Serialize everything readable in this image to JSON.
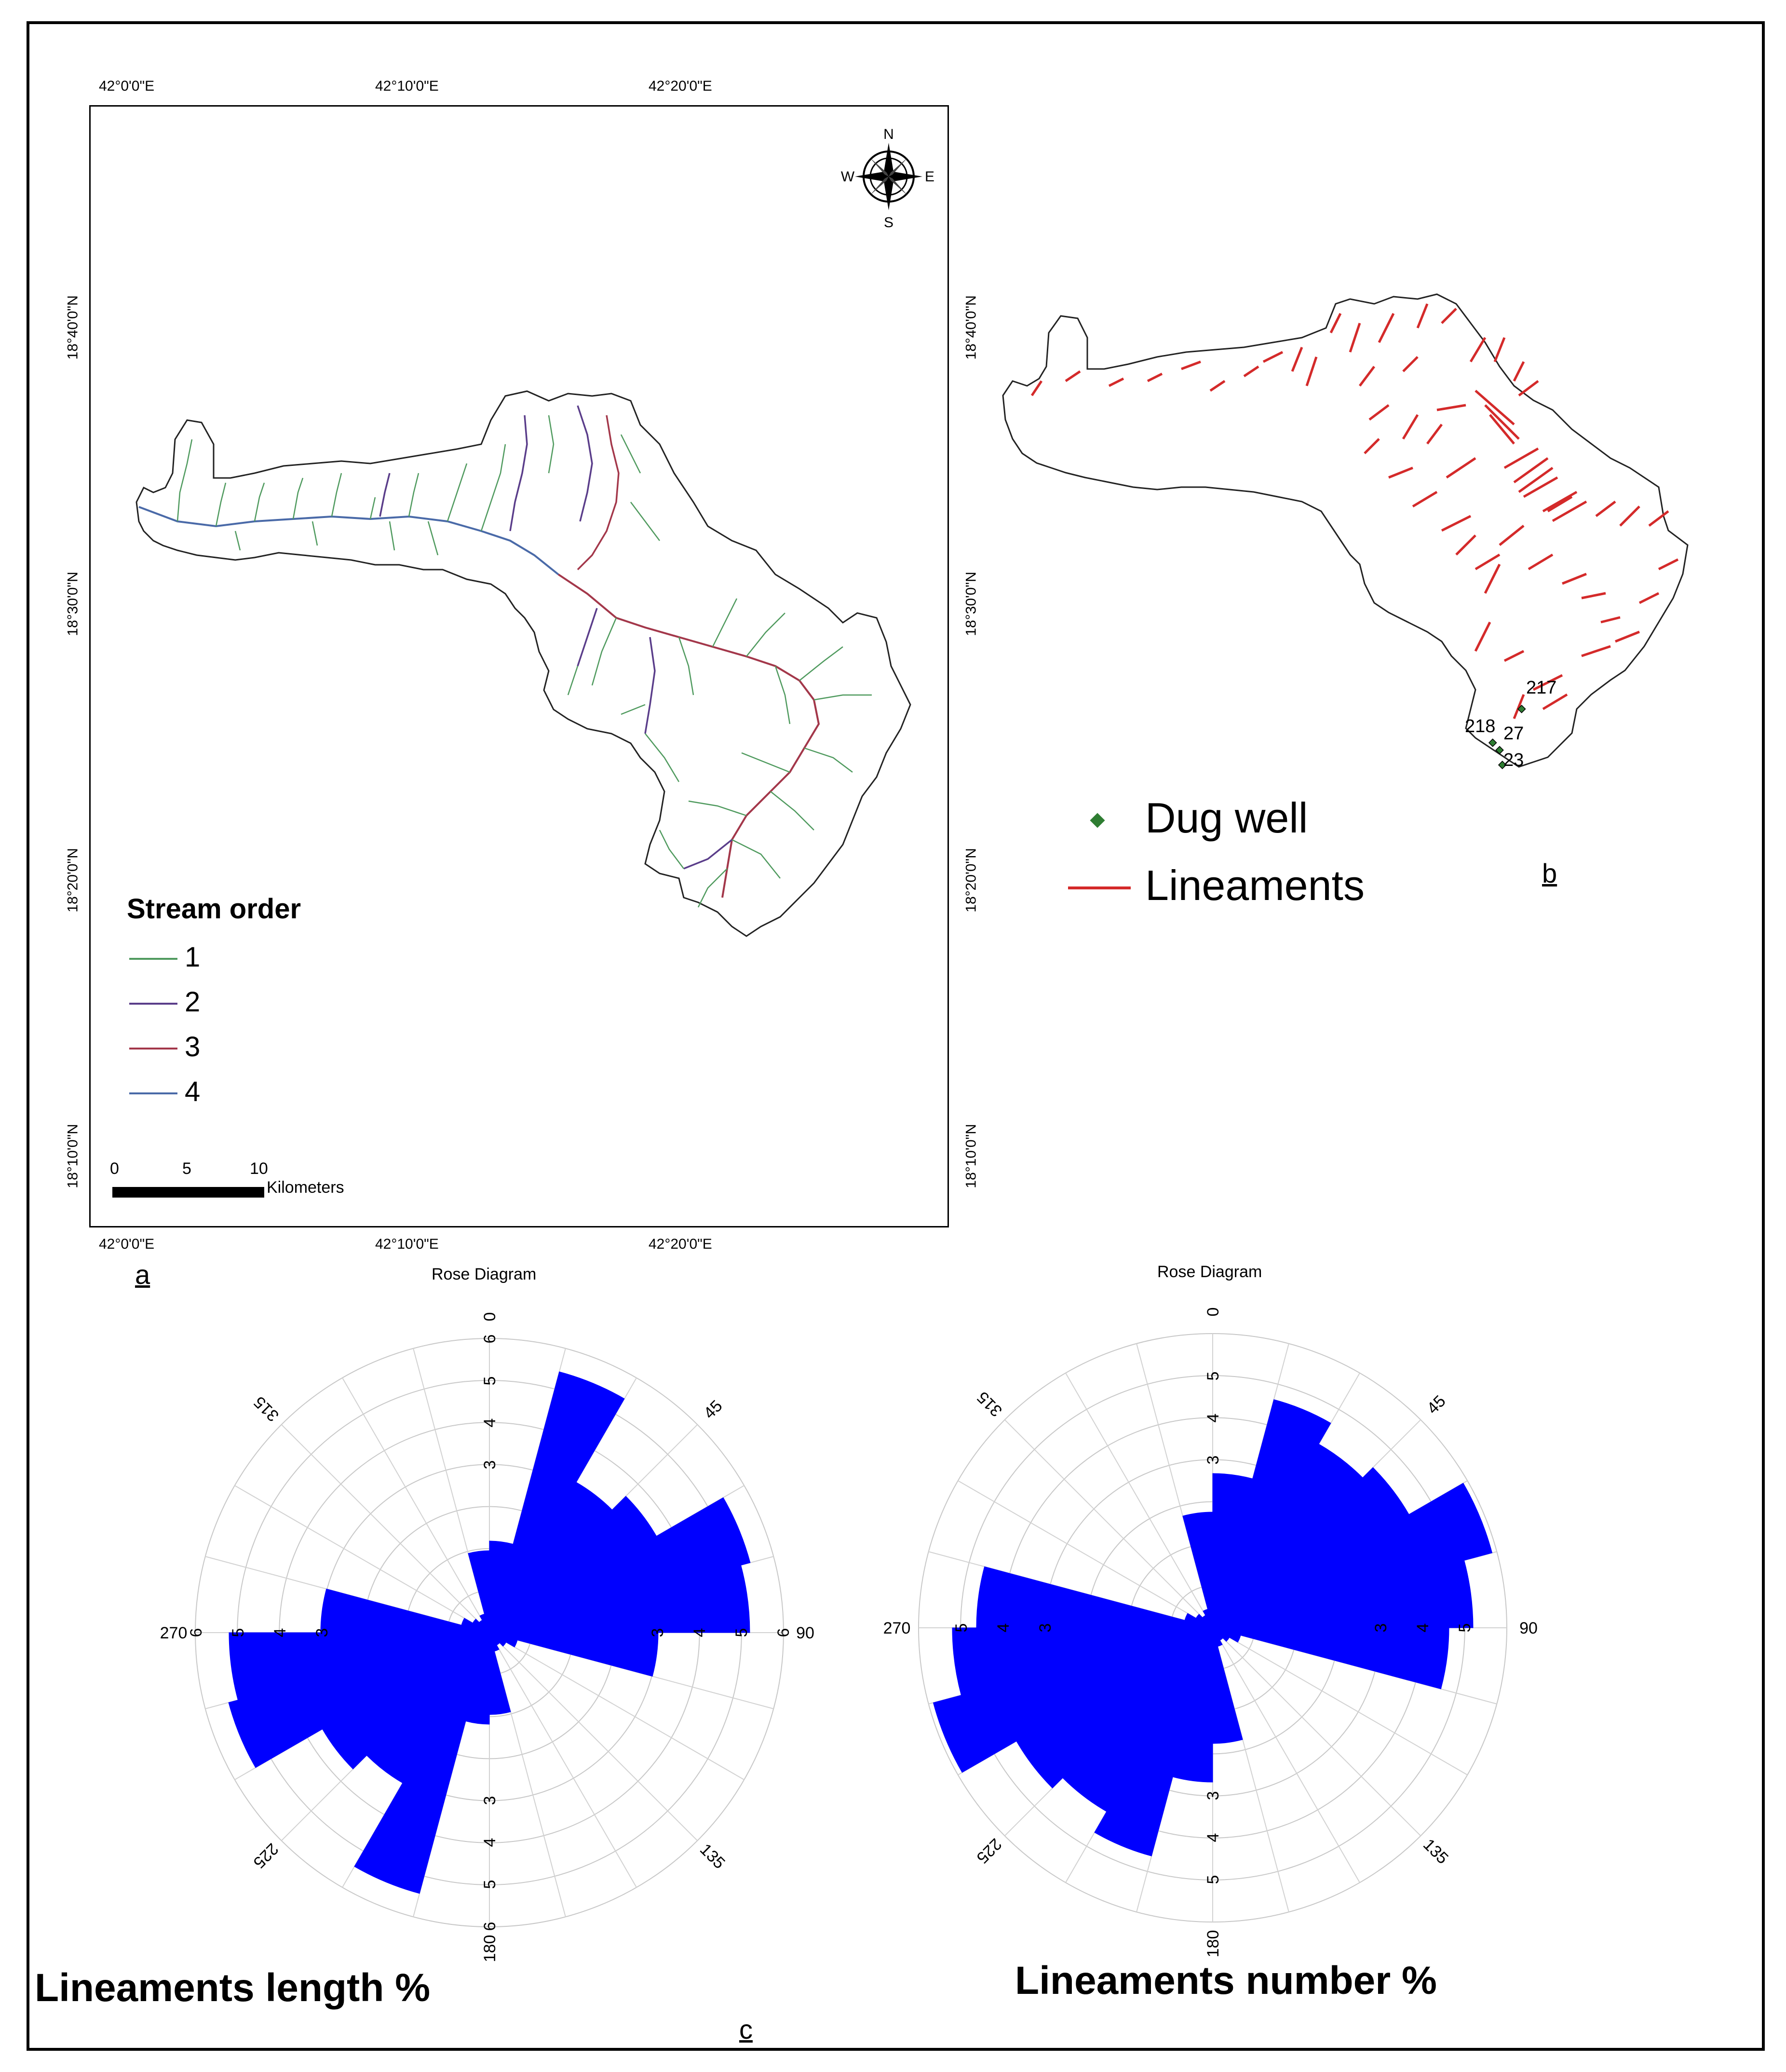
{
  "map_a": {
    "coords_top": [
      "42°0'0\"E",
      "42°10'0\"E",
      "42°20'0\"E"
    ],
    "coords_bottom": [
      "42°0'0\"E",
      "42°10'0\"E",
      "42°20'0\"E"
    ],
    "coords_left": [
      "18°40'0\"N",
      "18°30'0\"N",
      "18°20'0\"N",
      "18°10'0\"N"
    ],
    "coords_right": [
      "18°40'0\"N",
      "18°30'0\"N",
      "18°20'0\"N",
      "18°10'0\"N"
    ],
    "north_arrow": {
      "n": "N",
      "s": "S",
      "e": "E",
      "w": "W"
    },
    "legend": {
      "title": "Stream order",
      "items": [
        {
          "label": "1",
          "color": "#4f9a5e"
        },
        {
          "label": "2",
          "color": "#5a3d8a"
        },
        {
          "label": "3",
          "color": "#a3374a"
        },
        {
          "label": "4",
          "color": "#4a6aa8"
        }
      ]
    },
    "scale_bar": {
      "ticks": [
        "0",
        "5",
        "10"
      ],
      "unit": "Kilometers"
    },
    "panel_label": "a"
  },
  "map_b": {
    "legend": {
      "dug_well": "Dug well",
      "lineaments": "Lineaments",
      "lineament_color": "#d42a2a",
      "well_color": "#2e7d32"
    },
    "wells": [
      "217",
      "218",
      "27",
      "23"
    ],
    "panel_label": "b"
  },
  "rose_length": {
    "title": "Rose Diagram",
    "caption": "Lineaments length %",
    "bearing_labels": [
      "0",
      "45",
      "90",
      "135",
      "180",
      "225",
      "270",
      "315"
    ],
    "radial_ticks": [
      "3",
      "4",
      "5",
      "6"
    ],
    "color": "#0000ff"
  },
  "rose_number": {
    "title": "Rose Diagram",
    "caption": "Lineaments number %",
    "bearing_labels": [
      "0",
      "45",
      "90",
      "135",
      "180",
      "225",
      "270",
      "315"
    ],
    "radial_ticks": [
      "3",
      "4",
      "5"
    ],
    "color": "#0000ff"
  },
  "panel_c_label": "c"
}
